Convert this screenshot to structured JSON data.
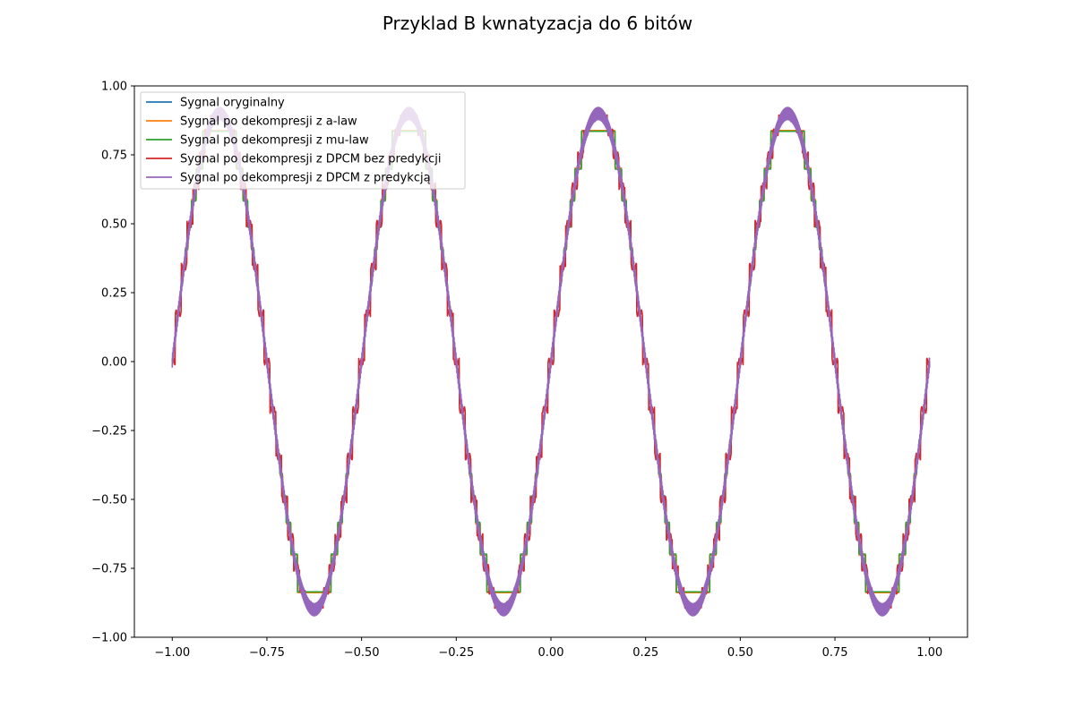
{
  "chart_data": {
    "type": "line",
    "title": "Przyklad B kwnatyzacja do 6 bitów",
    "xlabel": "",
    "ylabel": "",
    "xlim": [
      -1.1,
      1.1
    ],
    "ylim": [
      -1.0,
      1.0
    ],
    "x_ticks": [
      -1.0,
      -0.75,
      -0.5,
      -0.25,
      0.0,
      0.25,
      0.5,
      0.75,
      1.0
    ],
    "x_tick_labels": [
      "−1.00",
      "−0.75",
      "−0.50",
      "−0.25",
      "0.00",
      "0.25",
      "0.50",
      "0.75",
      "1.00"
    ],
    "y_ticks": [
      1.0,
      0.75,
      0.5,
      0.25,
      0.0,
      -0.25,
      -0.5,
      -0.75,
      -1.0
    ],
    "y_tick_labels": [
      "1.00",
      "0.75",
      "0.50",
      "0.25",
      "0.00",
      "−0.25",
      "−0.50",
      "−0.75",
      "−1.00"
    ],
    "grid": false,
    "legend_position": "top-left",
    "signal": {
      "function": "0.9*sin(4*pi*x)",
      "x_range": [
        -1.0,
        1.0
      ],
      "amplitude": 0.9,
      "frequency_cycles": 4
    },
    "series": [
      {
        "name": "Sygnal oryginalny",
        "color": "#1f77b4",
        "kind": "original"
      },
      {
        "name": "Sygnal po dekompresji z a-law",
        "color": "#ff7f0e",
        "kind": "a-law"
      },
      {
        "name": "Sygnal po dekompresji z mu-law",
        "color": "#2ca02c",
        "kind": "mu-law"
      },
      {
        "name": "Sygnal po dekompresji z DPCM bez predykcji",
        "color": "#d62728",
        "kind": "dpcm"
      },
      {
        "name": "Sygnal po dekompresji z DPCM z predykcją",
        "color": "#9467bd",
        "kind": "dpcm-pred"
      }
    ]
  }
}
